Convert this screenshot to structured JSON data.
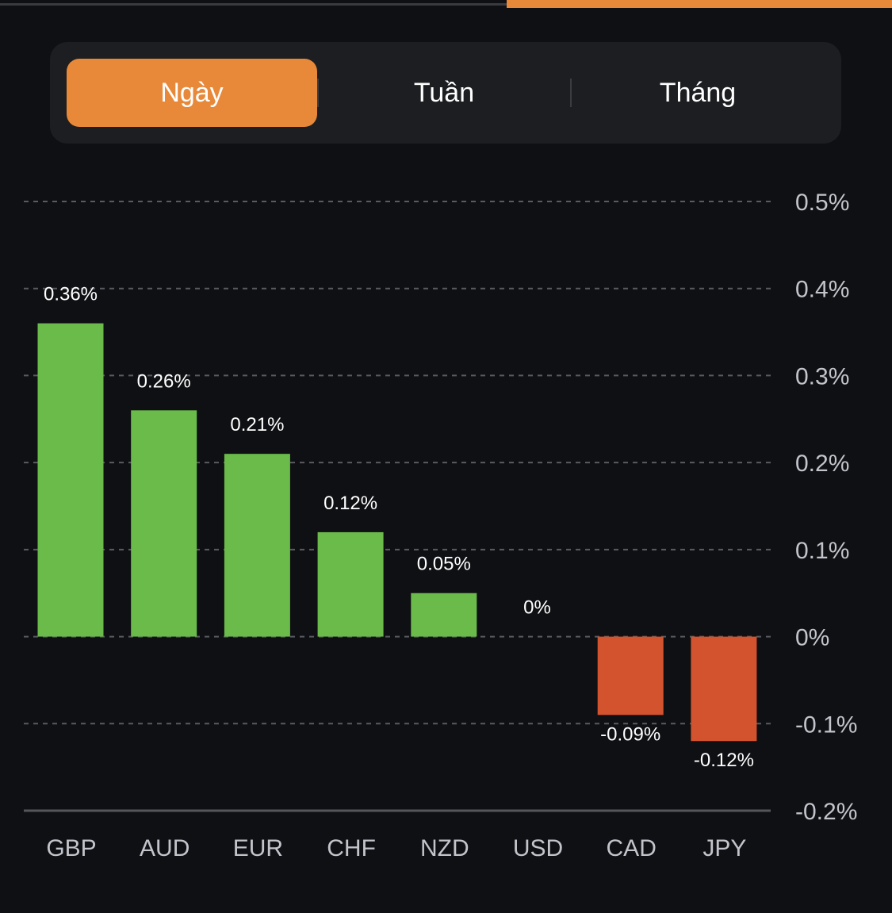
{
  "tabs": {
    "items": [
      {
        "label": "Ngày",
        "active": true
      },
      {
        "label": "Tuần",
        "active": false
      },
      {
        "label": "Tháng",
        "active": false
      }
    ]
  },
  "colors": {
    "accent": "#e8893a",
    "positive": "#6abb4a",
    "negative": "#d4532f",
    "grid": "#5a5b60",
    "axis": "#55565b",
    "tick_text": "#c2c4cc",
    "label_text": "#ffffff"
  },
  "chart_data": {
    "type": "bar",
    "title": "",
    "xlabel": "",
    "ylabel": "",
    "categories": [
      "GBP",
      "AUD",
      "EUR",
      "CHF",
      "NZD",
      "USD",
      "CAD",
      "JPY"
    ],
    "values": [
      0.36,
      0.26,
      0.21,
      0.12,
      0.05,
      0,
      -0.09,
      -0.12
    ],
    "value_labels": [
      "0.36%",
      "0.26%",
      "0.21%",
      "0.12%",
      "0.05%",
      "0%",
      "-0.09%",
      "-0.12%"
    ],
    "ylim": [
      -0.2,
      0.5
    ],
    "yticks": [
      0.5,
      0.4,
      0.3,
      0.2,
      0.1,
      0,
      -0.1,
      -0.2
    ],
    "ytick_labels": [
      "0.5%",
      "0.4%",
      "0.3%",
      "0.2%",
      "0.1%",
      "0%",
      "-0.1%",
      "-0.2%"
    ],
    "y_axis_position": "right",
    "grid": true,
    "legend": "none"
  }
}
